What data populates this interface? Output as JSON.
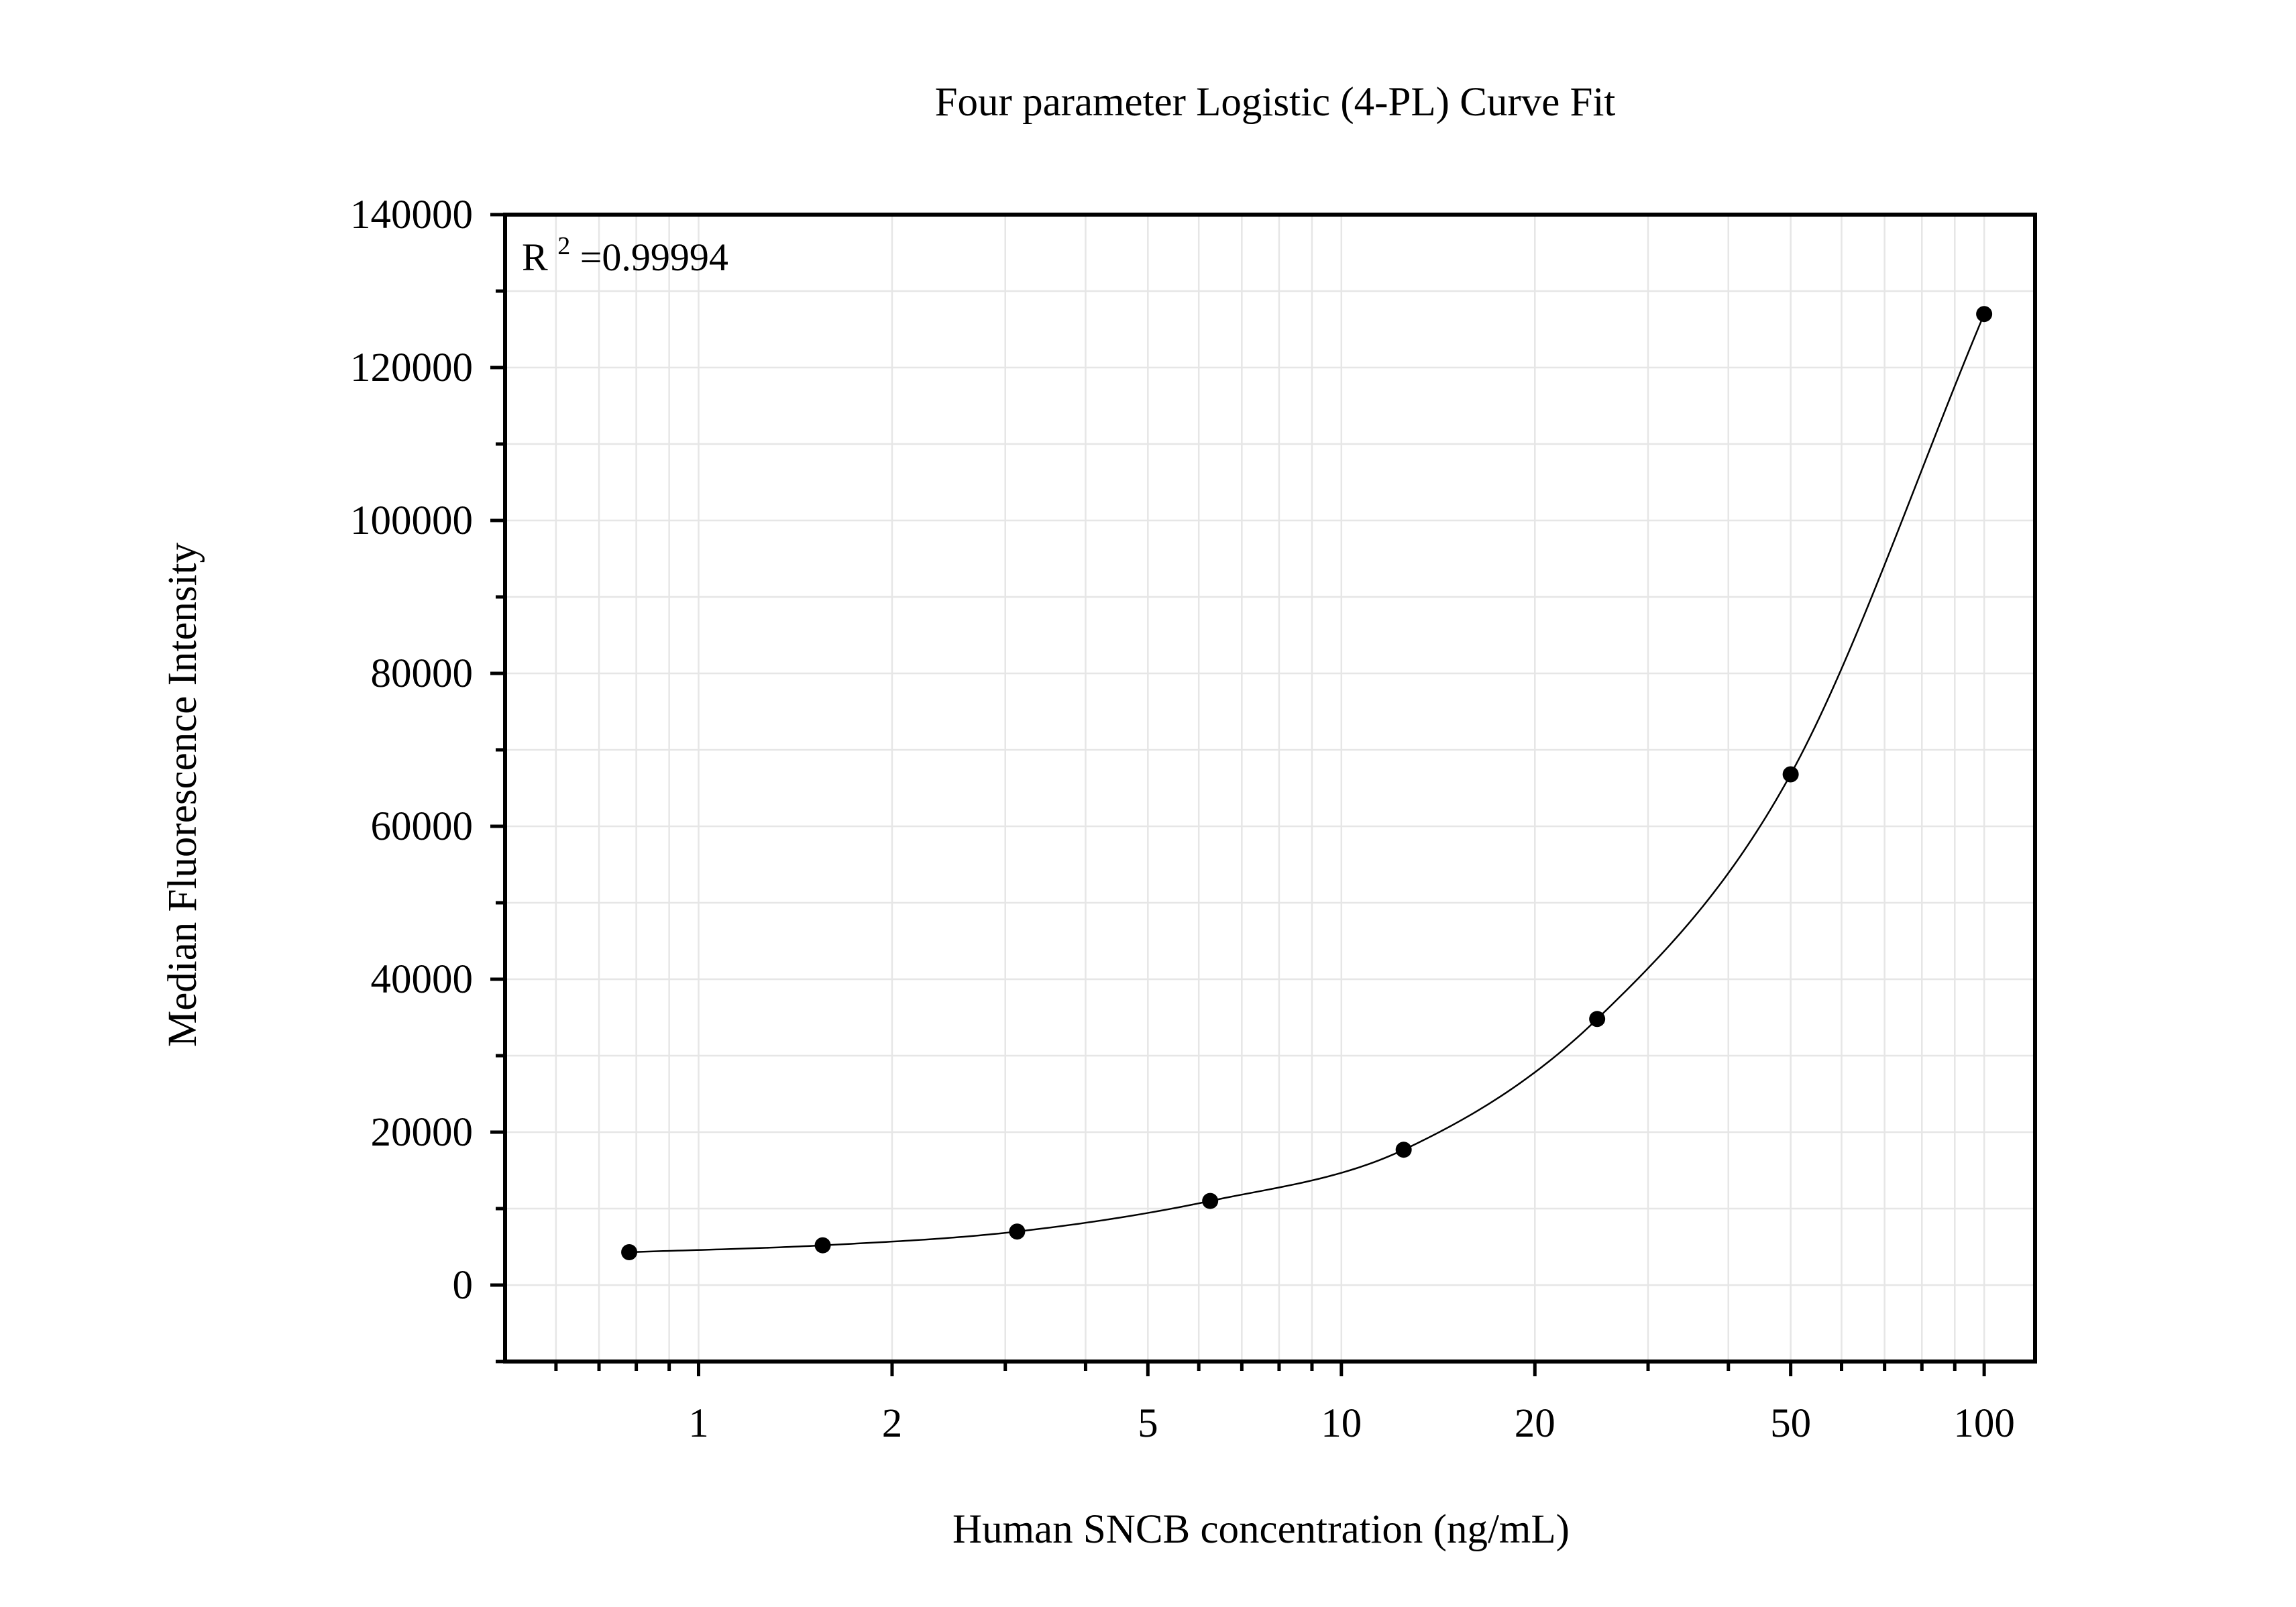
{
  "chart_data": {
    "type": "scatter",
    "title": "Four parameter Logistic (4-PL) Curve Fit",
    "xlabel": "Human SNCB concentration (ng/mL)",
    "ylabel": "Median Fluorescence Intensity",
    "annotation": {
      "base": "R",
      "superscript": "2",
      "value_text": "=0.99994"
    },
    "x_scale": "log",
    "xlim": [
      0.5,
      120
    ],
    "ylim": [
      -10000,
      140000
    ],
    "x_ticks": [
      1,
      2,
      5,
      10,
      20,
      50,
      100
    ],
    "x_tick_labels": [
      "1",
      "2",
      "5",
      "10",
      "20",
      "50",
      "100"
    ],
    "y_ticks": [
      0,
      20000,
      40000,
      60000,
      80000,
      100000,
      120000,
      140000
    ],
    "y_tick_labels": [
      "0",
      "20000",
      "40000",
      "60000",
      "80000",
      "100000",
      "120000",
      "140000"
    ],
    "grid": true,
    "legend": "none",
    "series": [
      {
        "points": {
          "x": [
            0.78,
            1.56,
            3.13,
            6.25,
            12.5,
            25,
            50,
            100
          ],
          "y": [
            4300,
            5200,
            7000,
            11000,
            17700,
            34800,
            66800,
            127000
          ]
        },
        "fit": "4-PL curve through points"
      }
    ],
    "colors": {
      "points": "#000000",
      "curve": "#000000",
      "grid": "#e6e6e6",
      "axes": "#000000"
    }
  }
}
